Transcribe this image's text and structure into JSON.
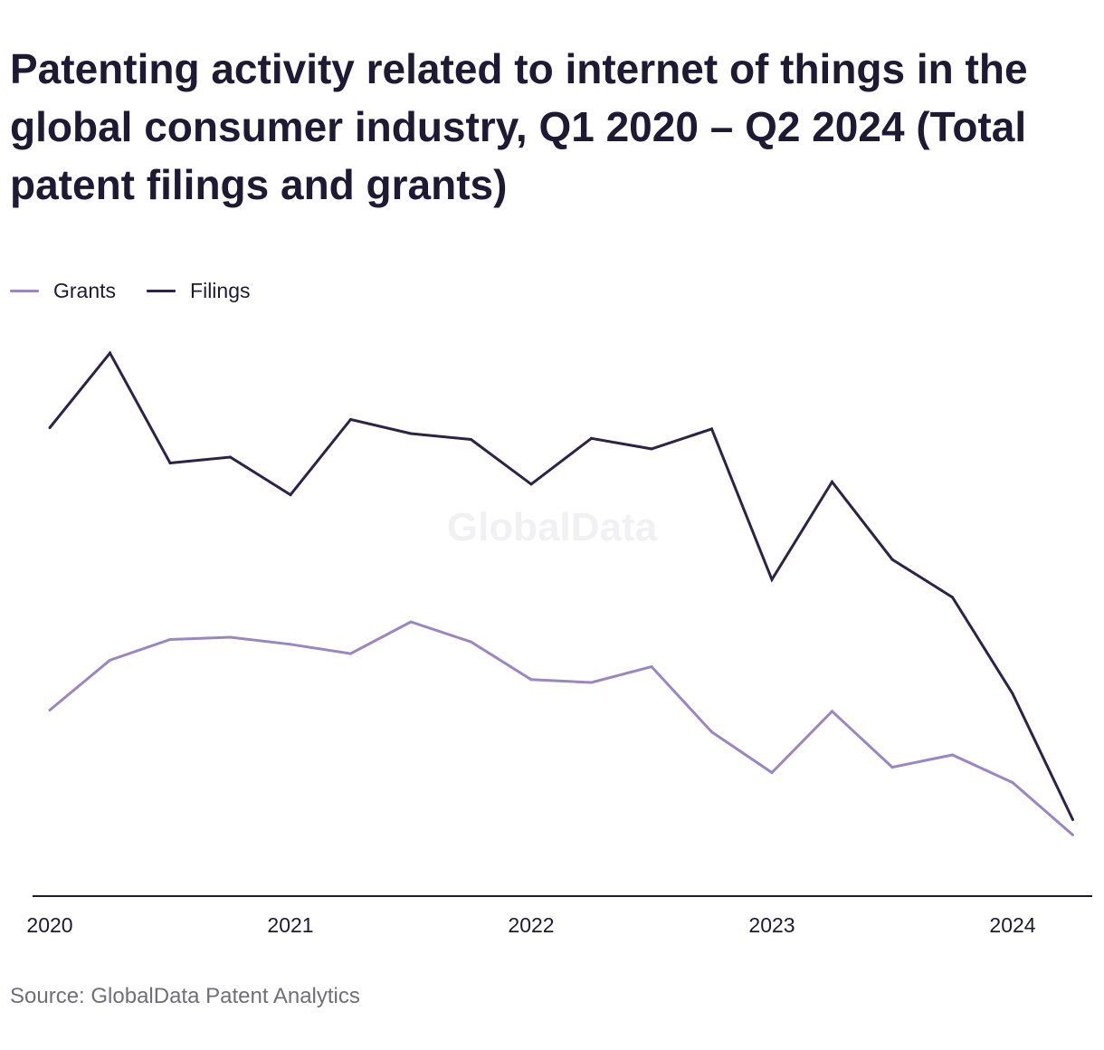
{
  "colors": {
    "grants": "#9b86c4",
    "filings": "#2c2346",
    "axis": "#1f1a33",
    "source_text": "#6f6f7a",
    "watermark": "#f1f1f3"
  },
  "watermark": "GlobalData",
  "source": "Source: GlobalData Patent Analytics",
  "chart_data": {
    "type": "line",
    "title": "Patenting activity related to internet of things in the global consumer industry, Q1 2020 – Q2 2024 (Total patent filings and grants)",
    "xlabel": "",
    "ylabel": "",
    "x": [
      "Q1 2020",
      "Q2 2020",
      "Q3 2020",
      "Q4 2020",
      "Q1 2021",
      "Q2 2021",
      "Q3 2021",
      "Q4 2021",
      "Q1 2022",
      "Q2 2022",
      "Q3 2022",
      "Q4 2022",
      "Q1 2023",
      "Q2 2023",
      "Q3 2023",
      "Q4 2023",
      "Q1 2024",
      "Q2 2024"
    ],
    "x_ticks": [
      "2020",
      "2021",
      "2022",
      "2023",
      "2024"
    ],
    "ylim": [
      0,
      1200
    ],
    "y_axis_labels_shown": false,
    "grid": false,
    "legend_position": "top-left",
    "series": [
      {
        "name": "Grants",
        "color": "#9b86c4",
        "values": [
          593,
          678,
          713,
          717,
          705,
          689,
          743,
          709,
          645,
          640,
          667,
          556,
          487,
          591,
          496,
          517,
          470,
          381
        ]
      },
      {
        "name": "Filings",
        "color": "#2c2346",
        "values": [
          1073,
          1200,
          1013,
          1023,
          959,
          1087,
          1063,
          1053,
          977,
          1055,
          1037,
          1071,
          815,
          981,
          849,
          785,
          621,
          407
        ]
      }
    ]
  }
}
